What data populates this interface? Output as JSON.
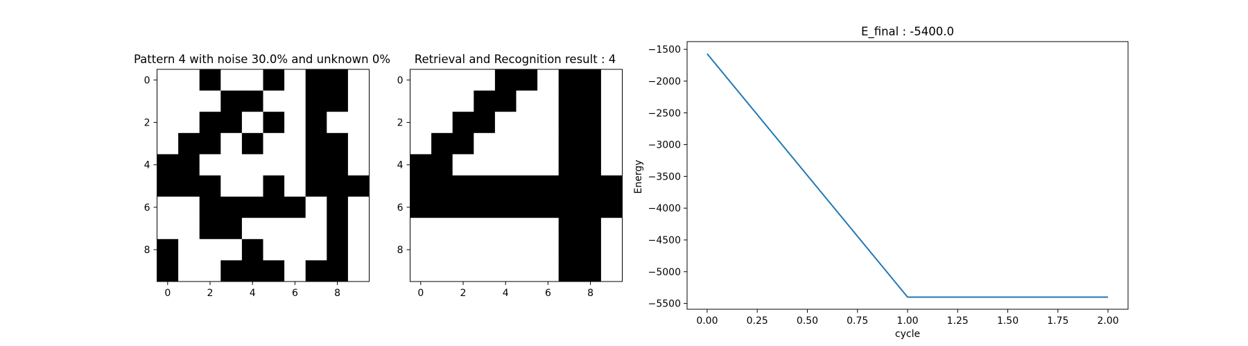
{
  "chart_data": [
    {
      "type": "heatmap",
      "title": "Pattern 4 with noise 30.0% and unknown 0%",
      "colors": {
        "1": "#000000",
        "0": "#ffffff"
      },
      "grid": [
        [
          0,
          0,
          1,
          0,
          0,
          1,
          0,
          1,
          1,
          0
        ],
        [
          0,
          0,
          0,
          1,
          1,
          0,
          0,
          1,
          1,
          0
        ],
        [
          0,
          0,
          1,
          1,
          0,
          1,
          0,
          1,
          0,
          0
        ],
        [
          0,
          1,
          1,
          0,
          1,
          0,
          0,
          1,
          1,
          0
        ],
        [
          1,
          1,
          0,
          0,
          0,
          0,
          0,
          1,
          1,
          0
        ],
        [
          1,
          1,
          1,
          0,
          0,
          1,
          0,
          1,
          1,
          1
        ],
        [
          0,
          0,
          1,
          1,
          1,
          1,
          1,
          0,
          1,
          0
        ],
        [
          0,
          0,
          1,
          1,
          0,
          0,
          0,
          0,
          1,
          0
        ],
        [
          1,
          0,
          0,
          0,
          1,
          0,
          0,
          0,
          1,
          0
        ],
        [
          1,
          0,
          0,
          1,
          1,
          1,
          0,
          1,
          1,
          0
        ]
      ],
      "xticks": [
        0,
        2,
        4,
        6,
        8
      ],
      "yticks": [
        0,
        2,
        4,
        6,
        8
      ]
    },
    {
      "type": "heatmap",
      "title": "Retrieval and Recognition result : 4",
      "colors": {
        "1": "#000000",
        "0": "#ffffff"
      },
      "grid": [
        [
          0,
          0,
          0,
          0,
          1,
          1,
          0,
          1,
          1,
          0
        ],
        [
          0,
          0,
          0,
          1,
          1,
          0,
          0,
          1,
          1,
          0
        ],
        [
          0,
          0,
          1,
          1,
          0,
          0,
          0,
          1,
          1,
          0
        ],
        [
          0,
          1,
          1,
          0,
          0,
          0,
          0,
          1,
          1,
          0
        ],
        [
          1,
          1,
          0,
          0,
          0,
          0,
          0,
          1,
          1,
          0
        ],
        [
          1,
          1,
          1,
          1,
          1,
          1,
          1,
          1,
          1,
          1
        ],
        [
          1,
          1,
          1,
          1,
          1,
          1,
          1,
          1,
          1,
          1
        ],
        [
          0,
          0,
          0,
          0,
          0,
          0,
          0,
          1,
          1,
          0
        ],
        [
          0,
          0,
          0,
          0,
          0,
          0,
          0,
          1,
          1,
          0
        ],
        [
          0,
          0,
          0,
          0,
          0,
          0,
          0,
          1,
          1,
          0
        ]
      ],
      "xticks": [
        0,
        2,
        4,
        6,
        8
      ],
      "yticks": [
        0,
        2,
        4,
        6,
        8
      ]
    },
    {
      "type": "line",
      "title": "E_final : -5400.0",
      "xlabel": "cycle",
      "ylabel": "Energy",
      "series": [
        {
          "x": [
            0,
            1,
            2
          ],
          "values": [
            -1570,
            -5400,
            -5400
          ]
        }
      ],
      "line_color": "#1f77b4",
      "xlim": [
        -0.1,
        2.1
      ],
      "ylim": [
        -5591.5,
        -1378.5
      ],
      "xticks": [
        0.0,
        0.25,
        0.5,
        0.75,
        1.0,
        1.25,
        1.5,
        1.75,
        2.0
      ],
      "xtick_labels": [
        "0.00",
        "0.25",
        "0.50",
        "0.75",
        "1.00",
        "1.25",
        "1.50",
        "1.75",
        "2.00"
      ],
      "yticks": [
        -1500,
        -2000,
        -2500,
        -3000,
        -3500,
        -4000,
        -4500,
        -5000,
        -5500
      ],
      "ytick_labels": [
        "−1500",
        "−2000",
        "−2500",
        "−3000",
        "−3500",
        "−4000",
        "−4500",
        "−5000",
        "−5500"
      ]
    }
  ]
}
